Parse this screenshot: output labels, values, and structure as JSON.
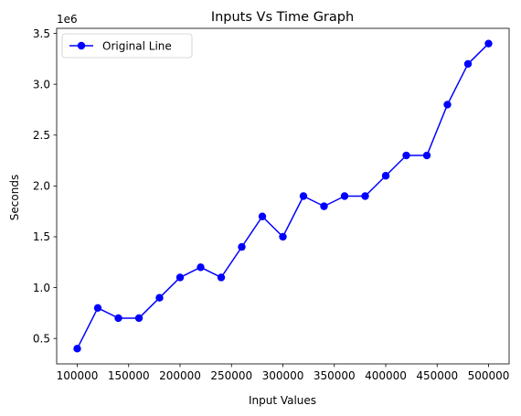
{
  "chart_data": {
    "type": "line",
    "title": "Inputs Vs Time Graph",
    "xlabel": "Input Values",
    "ylabel": "Seconds",
    "y_offset_label": "1e6",
    "xlim": [
      80000,
      520000
    ],
    "ylim": [
      250000,
      3550000
    ],
    "xticks": [
      100000,
      150000,
      200000,
      250000,
      300000,
      350000,
      400000,
      450000,
      500000
    ],
    "xtick_labels": [
      "100000",
      "150000",
      "200000",
      "250000",
      "300000",
      "350000",
      "400000",
      "450000",
      "500000"
    ],
    "yticks": [
      500000,
      1000000,
      1500000,
      2000000,
      2500000,
      3000000,
      3500000
    ],
    "ytick_labels": [
      "0.5",
      "1.0",
      "1.5",
      "2.0",
      "2.5",
      "3.0",
      "3.5"
    ],
    "grid": false,
    "legend_position": "top-left",
    "series": [
      {
        "name": "Original Line",
        "color": "#0000ff",
        "marker": "circle",
        "x": [
          100000,
          120000,
          140000,
          160000,
          180000,
          200000,
          220000,
          240000,
          260000,
          280000,
          300000,
          320000,
          340000,
          360000,
          380000,
          400000,
          420000,
          440000,
          460000,
          480000,
          500000
        ],
        "y": [
          400000,
          800000,
          700000,
          700000,
          900000,
          1100000,
          1200000,
          1100000,
          1400000,
          1700000,
          1500000,
          1900000,
          1800000,
          1900000,
          1900000,
          2100000,
          2300000,
          2300000,
          2800000,
          3200000,
          3400000
        ]
      }
    ]
  }
}
